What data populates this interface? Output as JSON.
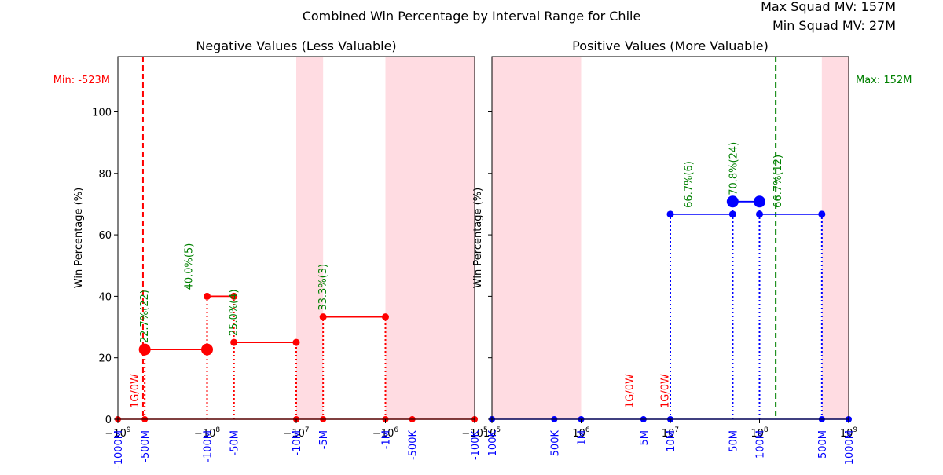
{
  "title": "Combined Win Percentage by Interval Range for Chile",
  "info": {
    "max_squad": "Max Squad MV: 157M",
    "min_squad": "Min Squad MV: 27M"
  },
  "colors": {
    "neg_series": "#ff0000",
    "pos_series": "#0000ff",
    "shade": "#ffc0cb",
    "min_line": "#ff0000",
    "max_line": "#008000",
    "annotation": "#008000",
    "no_win": "#ff0000"
  },
  "chart_data": [
    {
      "type": "line",
      "title": "Negative Values (Less Valuable)",
      "ylabel": "Win Percentage (%)",
      "xscale": "symlog (negative)",
      "ylim": [
        0,
        118
      ],
      "yticks": [
        "0",
        "20",
        "40",
        "60",
        "80",
        "100"
      ],
      "xticks": [
        {
          "value": -1000000000,
          "label": "−10^9"
        },
        {
          "value": -100000000,
          "label": "−10^8"
        },
        {
          "value": -10000000,
          "label": "−10^7"
        },
        {
          "value": -1000000,
          "label": "−10^6"
        },
        {
          "value": -100000,
          "label": "−10^5"
        }
      ],
      "interval_labels": [
        {
          "value": -1000000000,
          "label": "-1000M"
        },
        {
          "value": -500000000,
          "label": "-500M"
        },
        {
          "value": -100000000,
          "label": "-100M"
        },
        {
          "value": -50000000,
          "label": "-50M"
        },
        {
          "value": -10000000,
          "label": "-10M"
        },
        {
          "value": -5000000,
          "label": "-5M"
        },
        {
          "value": -1000000,
          "label": "-1M"
        },
        {
          "value": -500000,
          "label": "-500K"
        },
        {
          "value": -100000,
          "label": "-100K"
        }
      ],
      "shaded_ranges": [
        [
          -10000000,
          -5000000
        ],
        [
          -1000000,
          -100000
        ]
      ],
      "ref_line": {
        "value": -523000000,
        "label": "Min: -523M"
      },
      "segments": [
        {
          "from": -500000000,
          "to": -100000000,
          "pct": 22.7,
          "label": "22.7%(22)"
        },
        {
          "from": -100000000,
          "to": -50000000,
          "pct": 40.0,
          "label": "40.0%(5)"
        },
        {
          "from": -50000000,
          "to": -10000000,
          "pct": 25.0,
          "label": "25.0%(4)"
        },
        {
          "from": -5000000,
          "to": -1000000,
          "pct": 33.3,
          "label": "33.3%(3)"
        }
      ],
      "zero_points": [
        -1000000000,
        -500000000,
        -10000000,
        -5000000,
        -1000000,
        -500000,
        -100000
      ],
      "no_win_labels": [
        {
          "value": -500000000,
          "label": "1G/0W"
        }
      ]
    },
    {
      "type": "line",
      "title": "Positive Values (More Valuable)",
      "ylabel": "Win Percentage (%)",
      "xscale": "log",
      "ylim": [
        0,
        118
      ],
      "xticks": [
        {
          "value": 100000,
          "label": "10^5"
        },
        {
          "value": 1000000,
          "label": "10^6"
        },
        {
          "value": 10000000,
          "label": "10^7"
        },
        {
          "value": 100000000,
          "label": "10^8"
        },
        {
          "value": 1000000000,
          "label": "10^9"
        }
      ],
      "interval_labels": [
        {
          "value": 100000,
          "label": "100K"
        },
        {
          "value": 500000,
          "label": "500K"
        },
        {
          "value": 1000000,
          "label": "1M"
        },
        {
          "value": 5000000,
          "label": "5M"
        },
        {
          "value": 10000000,
          "label": "10M"
        },
        {
          "value": 50000000,
          "label": "50M"
        },
        {
          "value": 100000000,
          "label": "100M"
        },
        {
          "value": 500000000,
          "label": "500M"
        },
        {
          "value": 1000000000,
          "label": "1000M"
        }
      ],
      "shaded_ranges": [
        [
          100000,
          1000000
        ],
        [
          500000000,
          1000000000
        ]
      ],
      "ref_line": {
        "value": 152000000,
        "label": "Max: 152M"
      },
      "segments": [
        {
          "from": 10000000,
          "to": 50000000,
          "pct": 66.7,
          "label": "66.7%(6)"
        },
        {
          "from": 50000000,
          "to": 100000000,
          "pct": 70.8,
          "label": "70.8%(24)"
        },
        {
          "from": 100000000,
          "to": 500000000,
          "pct": 66.7,
          "label": "66.7%(12)"
        }
      ],
      "zero_points": [
        100000,
        500000,
        1000000,
        5000000,
        10000000,
        500000000,
        1000000000
      ],
      "no_win_labels": [
        {
          "value": 3800000,
          "label": "1G/0W"
        },
        {
          "value": 9500000,
          "label": "1G/0W"
        }
      ]
    }
  ]
}
